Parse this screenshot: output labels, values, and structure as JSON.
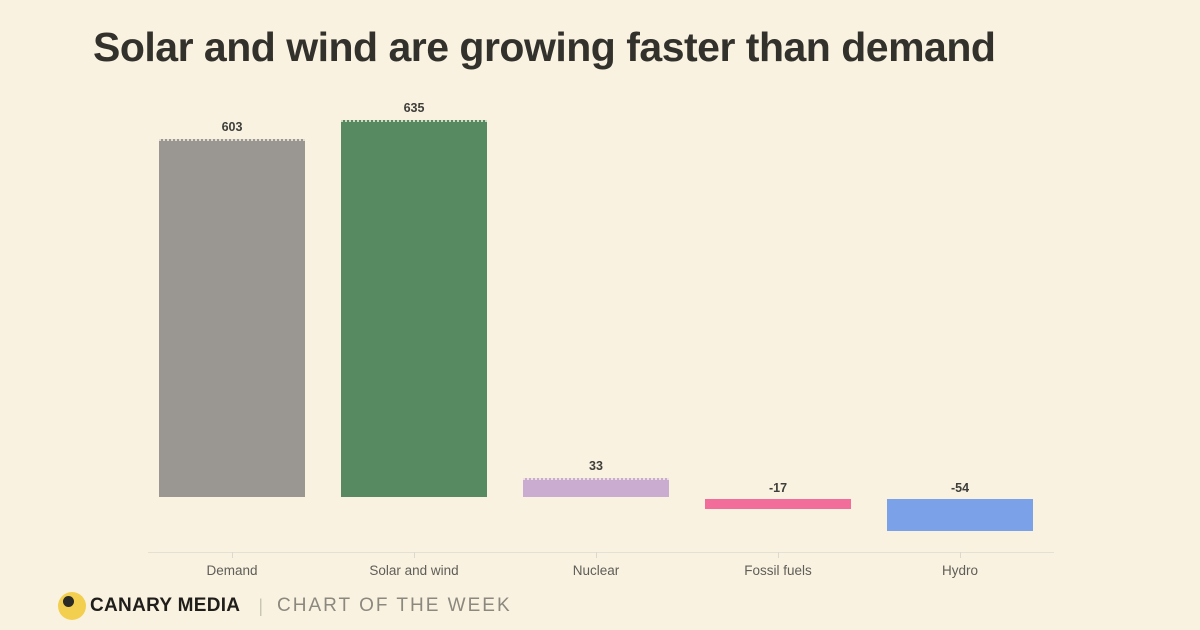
{
  "page": {
    "background": "#f9f2e1",
    "title": "Solar and wind are growing faster than demand"
  },
  "chart_data": {
    "type": "bar",
    "title": "Solar and wind are growing faster than demand",
    "categories": [
      "Demand",
      "Solar and wind",
      "Nuclear",
      "Fossil fuels",
      "Hydro"
    ],
    "values": [
      603,
      635,
      33,
      -17,
      -54
    ],
    "value_labels": [
      "603",
      "635",
      "33",
      "-17",
      "-54"
    ],
    "bar_colors": [
      "#9a9792",
      "#578a60",
      "#c9accf",
      "#f26d99",
      "#7ba2e9"
    ],
    "xlabel": "",
    "ylabel": "",
    "ylim": [
      -80,
      680
    ],
    "grid": false,
    "legend": false,
    "baseline": 0
  },
  "footer": {
    "logo_icon": "canary-logo-icon",
    "logo_yellow": "#f2cf4e",
    "logo_dot_color": "#2a2a26",
    "brand": "CANARY MEDIA",
    "divider": "|",
    "series_label": "CHART OF THE WEEK"
  }
}
